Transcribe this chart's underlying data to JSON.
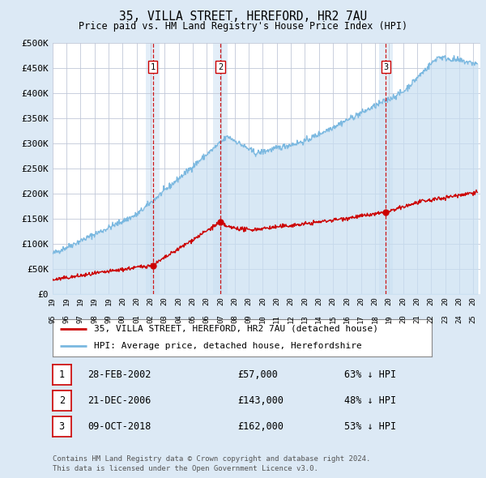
{
  "title": "35, VILLA STREET, HEREFORD, HR2 7AU",
  "subtitle": "Price paid vs. HM Land Registry's House Price Index (HPI)",
  "ylabel_ticks": [
    "£0",
    "£50K",
    "£100K",
    "£150K",
    "£200K",
    "£250K",
    "£300K",
    "£350K",
    "£400K",
    "£450K",
    "£500K"
  ],
  "ytick_values": [
    0,
    50000,
    100000,
    150000,
    200000,
    250000,
    300000,
    350000,
    400000,
    450000,
    500000
  ],
  "ylim": [
    0,
    500000
  ],
  "xlim_start": 1995.0,
  "xlim_end": 2025.5,
  "hpi_color": "#7ab8e0",
  "hpi_fill_color": "#c8dff2",
  "price_color": "#cc0000",
  "sale_marker_color": "#cc0000",
  "dashed_line_color": "#cc0000",
  "background_color": "#dce9f5",
  "plot_bg_color": "#ffffff",
  "grid_color": "#c0c8d8",
  "transactions": [
    {
      "label": "1",
      "date": "28-FEB-2002",
      "x": 2002.16,
      "price": 57000,
      "pct": "63%",
      "dir": "↓"
    },
    {
      "label": "2",
      "date": "21-DEC-2006",
      "x": 2006.97,
      "price": 143000,
      "pct": "48%",
      "dir": "↓"
    },
    {
      "label": "3",
      "date": "09-OCT-2018",
      "x": 2018.77,
      "price": 162000,
      "pct": "53%",
      "dir": "↓"
    }
  ],
  "legend_property": "35, VILLA STREET, HEREFORD, HR2 7AU (detached house)",
  "legend_hpi": "HPI: Average price, detached house, Herefordshire",
  "footer1": "Contains HM Land Registry data © Crown copyright and database right 2024.",
  "footer2": "This data is licensed under the Open Government Licence v3.0."
}
